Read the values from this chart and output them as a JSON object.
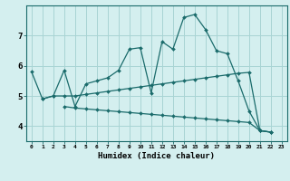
{
  "xlabel": "Humidex (Indice chaleur)",
  "bg_color": "#d4efef",
  "grid_color": "#a8d4d4",
  "line_color": "#1a6b6b",
  "xlim": [
    -0.5,
    23.5
  ],
  "ylim": [
    3.5,
    8.0
  ],
  "yticks": [
    4,
    5,
    6,
    7
  ],
  "xticks": [
    0,
    1,
    2,
    3,
    4,
    5,
    6,
    7,
    8,
    9,
    10,
    11,
    12,
    13,
    14,
    15,
    16,
    17,
    18,
    19,
    20,
    21,
    22,
    23
  ],
  "line1_x": [
    0,
    1,
    2,
    3,
    4,
    5,
    6,
    7,
    8,
    9,
    10,
    11,
    12,
    13,
    14,
    15,
    16,
    17,
    18,
    19,
    20,
    21,
    22
  ],
  "line1_y": [
    5.8,
    4.9,
    5.0,
    5.85,
    4.65,
    5.4,
    5.5,
    5.6,
    5.85,
    6.55,
    6.6,
    5.1,
    6.8,
    6.55,
    7.6,
    7.7,
    7.2,
    6.5,
    6.4,
    5.5,
    4.5,
    3.85,
    3.8
  ],
  "line2_x": [
    1,
    2,
    3,
    4,
    5,
    6,
    7,
    8,
    9,
    10,
    11,
    12,
    13,
    14,
    15,
    16,
    17,
    18,
    19,
    20,
    21,
    22
  ],
  "line2_y": [
    4.9,
    5.0,
    5.0,
    5.0,
    5.05,
    5.1,
    5.15,
    5.2,
    5.25,
    5.3,
    5.35,
    5.4,
    5.45,
    5.5,
    5.55,
    5.6,
    5.65,
    5.7,
    5.75,
    5.78,
    3.85,
    3.8
  ],
  "line3_x": [
    3,
    4,
    5,
    6,
    7,
    8,
    9,
    10,
    11,
    12,
    13,
    14,
    15,
    16,
    17,
    18,
    19,
    20,
    21,
    22
  ],
  "line3_y": [
    4.65,
    4.6,
    4.57,
    4.54,
    4.51,
    4.48,
    4.45,
    4.42,
    4.39,
    4.36,
    4.33,
    4.3,
    4.27,
    4.24,
    4.21,
    4.18,
    4.15,
    4.12,
    3.85,
    3.8
  ]
}
